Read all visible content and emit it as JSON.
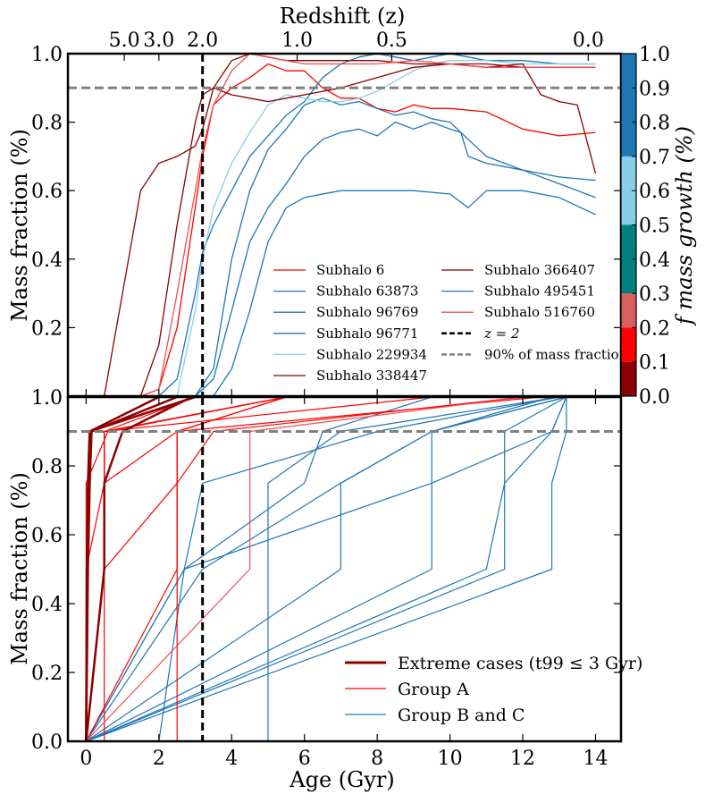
{
  "chart_data": [
    {
      "type": "line",
      "panel": "top",
      "title": "Redshift (z)",
      "xlabel": "",
      "ylabel": "Mass fraction (%)",
      "xlim": [
        -0.5,
        14.7
      ],
      "ylim": [
        0.0,
        1.0
      ],
      "x_ticks": [
        0,
        2,
        4,
        6,
        8,
        10,
        12,
        14
      ],
      "y_ticks": [
        "0.2",
        "0.4",
        "0.6",
        "0.8",
        "1.0"
      ],
      "top_axis": {
        "label": "Redshift (z)",
        "ticks": [
          {
            "label": "5.0",
            "age": 1.05
          },
          {
            "label": "3.0",
            "age": 2.0
          },
          {
            "label": "2.0",
            "age": 3.2
          },
          {
            "label": "1.0",
            "age": 5.8
          },
          {
            "label": "0.5",
            "age": 8.4
          },
          {
            "label": "0.0",
            "age": 13.8
          }
        ]
      },
      "reference_lines": [
        {
          "name": "z = 2",
          "orientation": "vertical",
          "x": 3.2,
          "style": "dashed",
          "color": "#000000"
        },
        {
          "name": "90% of mass fraction",
          "orientation": "horizontal",
          "y": 0.9,
          "style": "dashed",
          "color": "#808080"
        }
      ],
      "series": [
        {
          "name": "Subhalo 6",
          "color": "#ff0000",
          "x": [
            0.5,
            1,
            1.5,
            2,
            2.5,
            3,
            3.2,
            3.5,
            4,
            4.5,
            5,
            5.5,
            6,
            6.5,
            7,
            7.5,
            8,
            8.5,
            9,
            9.5,
            10,
            11,
            12,
            13,
            14
          ],
          "y": [
            0,
            0,
            0,
            0.02,
            0.2,
            0.55,
            0.7,
            0.85,
            0.9,
            0.93,
            0.97,
            0.95,
            0.95,
            0.9,
            0.87,
            0.87,
            0.84,
            0.83,
            0.85,
            0.84,
            0.84,
            0.83,
            0.78,
            0.76,
            0.77
          ]
        },
        {
          "name": "Subhalo 63873",
          "color": "#1f77b4",
          "x": [
            2,
            2.5,
            3,
            3.2,
            3.5,
            4,
            4.5,
            5,
            5.5,
            6,
            6.5,
            7,
            7.5,
            8,
            8.5,
            9,
            9.5,
            10,
            10.5,
            11,
            12,
            13,
            14
          ],
          "y": [
            0,
            0.05,
            0.3,
            0.42,
            0.5,
            0.6,
            0.7,
            0.76,
            0.82,
            0.86,
            0.93,
            0.97,
            0.99,
            1.0,
            0.99,
            0.98,
            0.99,
            1.0,
            0.99,
            0.98,
            0.98,
            0.97,
            0.97
          ]
        },
        {
          "name": "Subhalo 96769",
          "color": "#1f77b4",
          "x": [
            3,
            3.5,
            4,
            4.5,
            5,
            5.5,
            6,
            6.5,
            7,
            7.5,
            8,
            8.5,
            9,
            9.5,
            10,
            10.3,
            10.5,
            11,
            12,
            13,
            14
          ],
          "y": [
            0,
            0.05,
            0.25,
            0.45,
            0.55,
            0.62,
            0.7,
            0.75,
            0.77,
            0.78,
            0.76,
            0.8,
            0.78,
            0.8,
            0.78,
            0.77,
            0.7,
            0.68,
            0.66,
            0.62,
            0.58
          ]
        },
        {
          "name": "Subhalo 96771",
          "color": "#1f77b4",
          "x": [
            3,
            3.5,
            4,
            4.5,
            5,
            5.5,
            6,
            6.5,
            7,
            7.5,
            8,
            8.5,
            9,
            9.5,
            10,
            10.5,
            11,
            11.5,
            12,
            13,
            14
          ],
          "y": [
            0,
            0.08,
            0.4,
            0.6,
            0.72,
            0.78,
            0.85,
            0.87,
            0.85,
            0.86,
            0.84,
            0.82,
            0.83,
            0.81,
            0.8,
            0.75,
            0.7,
            0.68,
            0.66,
            0.64,
            0.63
          ]
        },
        {
          "name": "Subhalo 229934",
          "color": "#87ceeb",
          "x": [
            2.5,
            3,
            3.2,
            3.5,
            4,
            4.5,
            5,
            5.5,
            6,
            6.5,
            7,
            7.5,
            8,
            8.5,
            9,
            9.5,
            10,
            11,
            12,
            13,
            14
          ],
          "y": [
            0,
            0.25,
            0.4,
            0.55,
            0.68,
            0.77,
            0.85,
            0.88,
            0.87,
            0.86,
            0.86,
            0.87,
            0.89,
            0.92,
            0.95,
            0.97,
            0.98,
            0.98,
            0.97,
            0.97,
            0.97
          ]
        },
        {
          "name": "Subhalo 338447",
          "color": "#8b0000",
          "x": [
            1.5,
            2,
            2.5,
            3,
            3.2,
            3.5,
            4,
            4.5,
            5,
            5.5,
            6,
            7,
            8,
            9,
            10,
            11,
            12,
            13,
            14
          ],
          "y": [
            0,
            0.15,
            0.5,
            0.8,
            0.88,
            0.9,
            0.88,
            0.87,
            0.86,
            0.87,
            0.88,
            0.9,
            0.93,
            0.96,
            0.97,
            0.97,
            0.96,
            0.96,
            0.96
          ]
        },
        {
          "name": "Subhalo 366407",
          "color": "#8b0000",
          "x": [
            0.5,
            1,
            1.5,
            2,
            2.5,
            3,
            3.2,
            3.5,
            4,
            4.5,
            5,
            5.5,
            6,
            7,
            8,
            9,
            10,
            11,
            12,
            12.5,
            13,
            13.5,
            14
          ],
          "y": [
            0,
            0.3,
            0.6,
            0.68,
            0.7,
            0.73,
            0.78,
            0.9,
            0.98,
            1.0,
            0.99,
            0.98,
            0.98,
            0.98,
            0.98,
            0.97,
            0.97,
            0.96,
            0.97,
            0.88,
            0.86,
            0.85,
            0.65
          ]
        },
        {
          "name": "Subhalo 495451",
          "color": "#1f77b4",
          "x": [
            3.5,
            4,
            4.5,
            5,
            5.5,
            6,
            7,
            8,
            9,
            10,
            10.5,
            11,
            11.5,
            12,
            13,
            14
          ],
          "y": [
            0,
            0.08,
            0.25,
            0.45,
            0.55,
            0.58,
            0.6,
            0.6,
            0.6,
            0.59,
            0.55,
            0.6,
            0.6,
            0.6,
            0.58,
            0.53
          ]
        },
        {
          "name": "Subhalo 516760",
          "color": "#f05050",
          "x": [
            1.5,
            2,
            2.5,
            3,
            3.2,
            3.5,
            4,
            4.5,
            5,
            5.5,
            6,
            7,
            8,
            9,
            10,
            11,
            12,
            13,
            14
          ],
          "y": [
            0,
            0.02,
            0.3,
            0.6,
            0.72,
            0.85,
            0.95,
            1.0,
            0.99,
            0.98,
            0.97,
            0.97,
            0.97,
            0.98,
            0.97,
            0.96,
            0.96,
            0.96,
            0.96
          ]
        }
      ],
      "legend": [
        {
          "label": "Subhalo 6",
          "color": "#ff0000",
          "style": "solid"
        },
        {
          "label": "Subhalo 63873",
          "color": "#1f77b4",
          "style": "solid"
        },
        {
          "label": "Subhalo 96769",
          "color": "#1f77b4",
          "style": "solid"
        },
        {
          "label": "Subhalo 96771",
          "color": "#1f77b4",
          "style": "solid"
        },
        {
          "label": "Subhalo 229934",
          "color": "#87ceeb",
          "style": "solid"
        },
        {
          "label": "Subhalo 338447",
          "color": "#8b0000",
          "style": "solid"
        },
        {
          "label": "Subhalo 366407",
          "color": "#8b0000",
          "style": "solid"
        },
        {
          "label": "Subhalo 495451",
          "color": "#1f77b4",
          "style": "solid"
        },
        {
          "label": "Subhalo 516760",
          "color": "#f05050",
          "style": "solid"
        },
        {
          "label": "z = 2",
          "color": "#000000",
          "style": "dashed"
        },
        {
          "label": "90% of mass fraction",
          "color": "#808080",
          "style": "dashed"
        }
      ],
      "colorbar": {
        "label": "f mass growth (%)",
        "ticks": [
          "0.0",
          "0.1",
          "0.2",
          "0.3",
          "0.4",
          "0.5",
          "0.6",
          "0.7",
          "0.8",
          "0.9",
          "1.0"
        ],
        "bands": [
          {
            "from": 0.0,
            "to": 0.1,
            "color": "#8b0000"
          },
          {
            "from": 0.1,
            "to": 0.2,
            "color": "#ff0000"
          },
          {
            "from": 0.2,
            "to": 0.3,
            "color": "#d95f5f"
          },
          {
            "from": 0.3,
            "to": 0.5,
            "color": "#008080"
          },
          {
            "from": 0.5,
            "to": 0.7,
            "color": "#87ceeb"
          },
          {
            "from": 0.7,
            "to": 1.0,
            "color": "#1f77b4"
          }
        ]
      }
    },
    {
      "type": "line",
      "panel": "bottom",
      "xlabel": "Age (Gyr)",
      "ylabel": "Mass fraction (%)",
      "xlim": [
        -0.5,
        14.7
      ],
      "ylim": [
        0.0,
        1.0
      ],
      "x_ticks": [
        "0",
        "2",
        "4",
        "6",
        "8",
        "10",
        "12",
        "14"
      ],
      "y_ticks": [
        "0.0",
        "0.2",
        "0.4",
        "0.6",
        "0.8",
        "1.0"
      ],
      "reference_lines": [
        {
          "name": "z = 2",
          "orientation": "vertical",
          "x": 3.2,
          "style": "dashed",
          "color": "#000000"
        },
        {
          "name": "90% of mass fraction",
          "orientation": "horizontal",
          "y": 0.9,
          "style": "dashed",
          "color": "#808080"
        }
      ],
      "milestones": [
        0,
        0.5,
        0.75,
        0.9,
        1.0
      ],
      "series": [
        {
          "name": "Extreme cases",
          "group": "extreme",
          "color": "#8b0000",
          "width": 2.5,
          "ages": [
            0,
            0.02,
            0.05,
            0.1,
            3.0
          ]
        },
        {
          "name": "Extreme cases",
          "group": "extreme",
          "color": "#8b0000",
          "width": 2.5,
          "ages": [
            0,
            0.5,
            0.5,
            1.0,
            2.9
          ]
        },
        {
          "name": "Extreme cases",
          "group": "extreme",
          "color": "#8b0000",
          "width": 2.5,
          "ages": [
            0,
            0.05,
            0.1,
            0.15,
            2.5
          ]
        },
        {
          "name": "Extreme cases",
          "group": "extreme",
          "color": "#8b0000",
          "width": 2.5,
          "ages": [
            0,
            0.03,
            0.06,
            0.1,
            2.0
          ]
        },
        {
          "name": "Group A",
          "group": "A",
          "color": "#ff0000",
          "width": 1.2,
          "ages": [
            0,
            0,
            0,
            0.6,
            5.5
          ]
        },
        {
          "name": "Group A",
          "group": "A",
          "color": "#ff0000",
          "width": 1.2,
          "ages": [
            0,
            0.5,
            0.5,
            2.5,
            5.5
          ]
        },
        {
          "name": "Group A",
          "group": "A",
          "color": "#ff0000",
          "width": 1.2,
          "ages": [
            0,
            0.5,
            2.5,
            2.5,
            5.5
          ]
        },
        {
          "name": "Group A",
          "group": "A",
          "color": "#ff0000",
          "width": 1.2,
          "ages": [
            0,
            0.5,
            0.5,
            0.5,
            3.0
          ]
        },
        {
          "name": "Group A",
          "group": "A",
          "color": "#ff0000",
          "width": 1.2,
          "ages": [
            0,
            0,
            0.5,
            0.5,
            5.5
          ]
        },
        {
          "name": "Group A",
          "group": "A",
          "color": "#ff0000",
          "width": 1.2,
          "ages": [
            0.5,
            0.5,
            0.5,
            0.5,
            5.5
          ]
        },
        {
          "name": "Group A",
          "group": "A",
          "color": "#ff0000",
          "width": 1.2,
          "ages": [
            0,
            2.5,
            2.5,
            2.5,
            12.5
          ]
        },
        {
          "name": "Group A",
          "group": "A",
          "color": "#ff0000",
          "width": 1.2,
          "ages": [
            2.5,
            2.5,
            2.5,
            3.5,
            12.0
          ]
        },
        {
          "name": "Group A",
          "group": "A",
          "color": "#ff0000",
          "width": 1.2,
          "ages": [
            0,
            0.5,
            0.5,
            0.5,
            9.5
          ]
        },
        {
          "name": "Group A",
          "group": "A",
          "color": "#f05050",
          "width": 1.2,
          "ages": [
            0,
            4.5,
            4.5,
            4.5,
            12.0
          ]
        },
        {
          "name": "Group B and C",
          "group": "BC",
          "color": "#1f77b4",
          "width": 1.2,
          "ages": [
            0,
            2.7,
            6.0,
            6.5,
            9.5
          ]
        },
        {
          "name": "Group B and C",
          "group": "BC",
          "color": "#1f77b4",
          "width": 1.2,
          "ages": [
            0,
            3.2,
            7.0,
            9.5,
            13.2
          ]
        },
        {
          "name": "Group B and C",
          "group": "BC",
          "color": "#1f77b4",
          "width": 1.2,
          "ages": [
            0,
            7.0,
            7.0,
            9.5,
            13.2
          ]
        },
        {
          "name": "Group B and C",
          "group": "BC",
          "color": "#1f77b4",
          "width": 1.2,
          "ages": [
            0,
            9.5,
            9.5,
            12.8,
            13.2
          ]
        },
        {
          "name": "Group B and C",
          "group": "BC",
          "color": "#1f77b4",
          "width": 1.2,
          "ages": [
            0,
            11.0,
            11.5,
            11.5,
            13.2
          ]
        },
        {
          "name": "Group B and C",
          "group": "BC",
          "color": "#1f77b4",
          "width": 1.2,
          "ages": [
            0,
            11.5,
            11.5,
            12.8,
            13.2
          ]
        },
        {
          "name": "Group B and C",
          "group": "BC",
          "color": "#1f77b4",
          "width": 1.2,
          "ages": [
            0,
            12.8,
            12.8,
            13.2,
            13.2
          ]
        },
        {
          "name": "Group B and C",
          "group": "BC",
          "color": "#1f77b4",
          "width": 1.2,
          "ages": [
            5.0,
            5.0,
            5.0,
            7.0,
            13.0
          ]
        },
        {
          "name": "Group B and C",
          "group": "BC",
          "color": "#1f77b4",
          "width": 1.2,
          "ages": [
            2.0,
            2.7,
            3.2,
            8.0,
            13.0
          ]
        },
        {
          "name": "Group B and C",
          "group": "BC",
          "color": "#1f77b4",
          "width": 1.2,
          "ages": [
            0,
            2.7,
            9.5,
            9.5,
            12.8
          ]
        }
      ],
      "legend": [
        {
          "label": "Extreme cases (t99 ≤ 3 Gyr)",
          "color": "#8b0000",
          "style": "solid"
        },
        {
          "label": "Group A",
          "color": "#ff0000",
          "style": "solid"
        },
        {
          "label": "Group B and C",
          "color": "#1f77b4",
          "style": "solid"
        }
      ]
    }
  ]
}
